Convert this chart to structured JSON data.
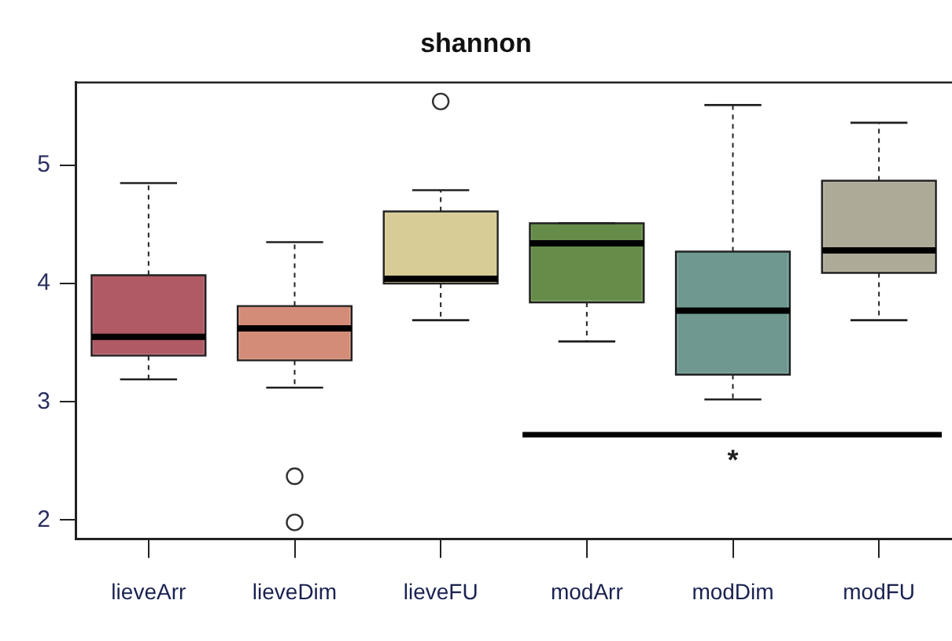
{
  "chart_data": {
    "type": "box",
    "title": "shannon",
    "categories": [
      "lieveArr",
      "lieveDim",
      "lieveFU",
      "modArr",
      "modDim",
      "modFU"
    ],
    "boxes": [
      {
        "low": 3.19,
        "q1": 3.39,
        "median": 3.55,
        "q3": 4.07,
        "high": 4.85
      },
      {
        "low": 3.12,
        "q1": 3.35,
        "median": 3.62,
        "q3": 3.81,
        "high": 4.35,
        "outliers": [
          2.37,
          1.98
        ]
      },
      {
        "low": 3.69,
        "q1": 4.0,
        "median": 4.04,
        "q3": 4.61,
        "high": 4.79,
        "outliers": [
          5.54
        ]
      },
      {
        "low": 3.51,
        "q1": 3.84,
        "median": 4.34,
        "q3": 4.51,
        "high": 4.51
      },
      {
        "low": 3.02,
        "q1": 3.23,
        "median": 3.77,
        "q3": 4.27,
        "high": 5.51
      },
      {
        "low": 3.69,
        "q1": 4.09,
        "median": 4.28,
        "q3": 4.87,
        "high": 5.36
      }
    ],
    "colors": [
      "#b05a66",
      "#d38c78",
      "#d8cc96",
      "#668c4a",
      "#6e9890",
      "#aeaa98"
    ],
    "ylim": [
      1.84,
      5.7
    ],
    "yticks": [
      2,
      3,
      4,
      5
    ],
    "grid": false,
    "legend": false,
    "annotations": [
      "*"
    ]
  }
}
